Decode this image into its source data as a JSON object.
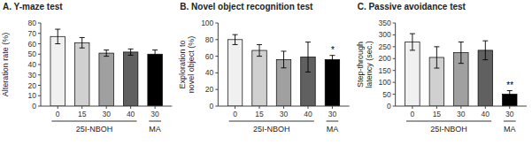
{
  "chart_data": [
    {
      "type": "bar",
      "title": "A. Y-maze test",
      "y_label": "Alteration rate (%)",
      "categories": [
        "0",
        "15",
        "30",
        "40",
        "30"
      ],
      "values": [
        67,
        61,
        51,
        52,
        50
      ],
      "errors": [
        7,
        5,
        3,
        3,
        4
      ],
      "colors": [
        "#f0f0f0",
        "#d0d0d0",
        "#a0a0a0",
        "#606060",
        "#000000"
      ],
      "ylim": [
        0,
        80
      ],
      "yticks": [
        0,
        10,
        20,
        30,
        40,
        50,
        60,
        70,
        80
      ],
      "grid": false,
      "groups": [
        {
          "label": "25I-NBOH",
          "from": 0,
          "to": 3
        },
        {
          "label": "MA",
          "from": 4,
          "to": 4
        }
      ],
      "annotations": []
    },
    {
      "type": "bar",
      "title": "B. Novel object recognition test",
      "y_label": "Exploration to\nnovel object (%)",
      "categories": [
        "0",
        "15",
        "30",
        "40",
        "30"
      ],
      "values": [
        80,
        67,
        56,
        59,
        56
      ],
      "errors": [
        6,
        7,
        10,
        18,
        5
      ],
      "colors": [
        "#f0f0f0",
        "#d0d0d0",
        "#a0a0a0",
        "#606060",
        "#000000"
      ],
      "ylim": [
        0,
        100
      ],
      "yticks": [
        0,
        20,
        40,
        60,
        80,
        100
      ],
      "grid": false,
      "groups": [
        {
          "label": "25I-NBOH",
          "from": 0,
          "to": 3
        },
        {
          "label": "MA",
          "from": 4,
          "to": 4
        }
      ],
      "annotations": [
        {
          "index": 4,
          "text": "*"
        }
      ]
    },
    {
      "type": "bar",
      "title": "C. Passive avoidance test",
      "y_label": "Step-through\nlatency (sec.)",
      "categories": [
        "0",
        "15",
        "30",
        "40",
        "30"
      ],
      "values": [
        270,
        205,
        225,
        235,
        50
      ],
      "errors": [
        35,
        45,
        45,
        40,
        15
      ],
      "colors": [
        "#f0f0f0",
        "#d0d0d0",
        "#a0a0a0",
        "#606060",
        "#000000"
      ],
      "ylim": [
        0,
        350
      ],
      "yticks": [
        0,
        50,
        100,
        150,
        200,
        250,
        300,
        350
      ],
      "grid": false,
      "groups": [
        {
          "label": "25I-NBOH",
          "from": 0,
          "to": 3
        },
        {
          "label": "MA",
          "from": 4,
          "to": 4
        }
      ],
      "annotations": [
        {
          "index": 4,
          "text": "**"
        }
      ]
    }
  ]
}
